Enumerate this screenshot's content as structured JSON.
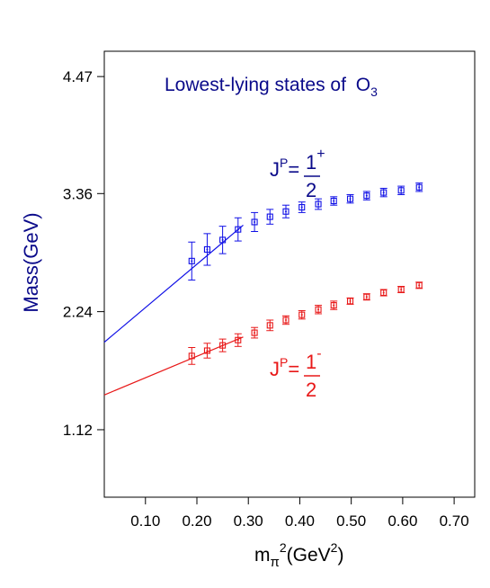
{
  "chart_data": {
    "type": "scatter",
    "title": "Lowest-lying states of ",
    "title_symbol": "O",
    "title_sub": "3",
    "ylabel": "Mass(GeV)",
    "xlabel_parts": {
      "main": "m",
      "sub": "π",
      "sup": "2",
      "unit": "(GeV",
      "unit_sup": "2",
      "unit_close": ")"
    },
    "x_ticks": [
      "0.10",
      "0.20",
      "0.30",
      "0.40",
      "0.50",
      "0.60",
      "0.70"
    ],
    "y_ticks": [
      "1.12",
      "2.24",
      "3.36",
      "4.47"
    ],
    "xlim": [
      0.02,
      0.74
    ],
    "ylim": [
      0.48,
      4.71
    ],
    "y_tick_values": [
      1.12,
      2.24,
      3.36,
      4.47
    ],
    "x_tick_values": [
      0.1,
      0.2,
      0.3,
      0.4,
      0.5,
      0.6,
      0.7
    ],
    "grid": false,
    "series": [
      {
        "color": "#1010e6",
        "label_J": "J",
        "label_P": "P",
        "label_eq": "=",
        "label_num": "1",
        "label_sign": "+",
        "label_den": "2",
        "x": [
          0.19,
          0.22,
          0.25,
          0.28,
          0.312,
          0.342,
          0.373,
          0.404,
          0.436,
          0.466,
          0.498,
          0.53,
          0.563,
          0.597,
          0.632
        ],
        "y": [
          2.72,
          2.83,
          2.92,
          3.02,
          3.09,
          3.14,
          3.19,
          3.23,
          3.26,
          3.29,
          3.31,
          3.34,
          3.37,
          3.39,
          3.42
        ],
        "yerr": [
          0.18,
          0.15,
          0.13,
          0.11,
          0.09,
          0.07,
          0.06,
          0.05,
          0.05,
          0.04,
          0.04,
          0.04,
          0.04,
          0.04,
          0.04
        ],
        "fit": {
          "x": [
            0.02,
            0.29
          ],
          "y": [
            1.95,
            3.06
          ]
        }
      },
      {
        "color": "#e81818",
        "label_J": "J",
        "label_P": "P",
        "label_eq": "=",
        "label_num": "1",
        "label_sign": "-",
        "label_den": "2",
        "x": [
          0.19,
          0.22,
          0.25,
          0.28,
          0.312,
          0.342,
          0.373,
          0.404,
          0.436,
          0.466,
          0.498,
          0.53,
          0.563,
          0.597,
          0.632
        ],
        "y": [
          1.82,
          1.87,
          1.92,
          1.97,
          2.04,
          2.11,
          2.16,
          2.21,
          2.26,
          2.3,
          2.34,
          2.38,
          2.42,
          2.45,
          2.49
        ],
        "yerr": [
          0.08,
          0.07,
          0.06,
          0.06,
          0.05,
          0.05,
          0.04,
          0.04,
          0.04,
          0.04,
          0.03,
          0.03,
          0.03,
          0.03,
          0.03
        ],
        "fit": {
          "x": [
            0.02,
            0.29
          ],
          "y": [
            1.45,
            2.0
          ]
        }
      }
    ]
  }
}
